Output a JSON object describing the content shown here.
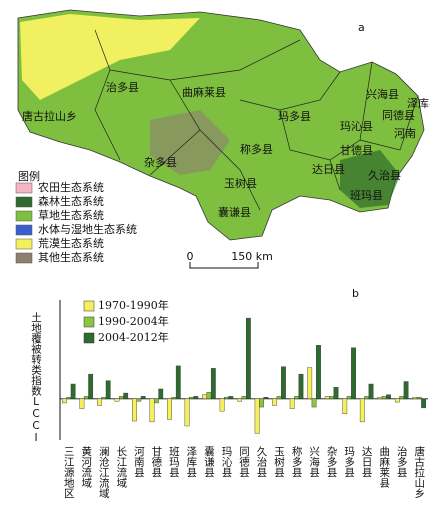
{
  "map": {
    "panel": "a",
    "legend_title": "图例",
    "legend": [
      {
        "label": "农田生态系统",
        "color": "#f4b6c2"
      },
      {
        "label": "森林生态系统",
        "color": "#2e6b2e"
      },
      {
        "label": "草地生态系统",
        "color": "#7fbf3f"
      },
      {
        "label": "水体与湿地生态系统",
        "color": "#3a5fcd"
      },
      {
        "label": "荒漠生态系统",
        "color": "#f0f060"
      },
      {
        "label": "其他生态系统",
        "color": "#8c8070"
      }
    ],
    "scale_start": "0",
    "scale_end": "150 km",
    "labels": [
      "治多县",
      "曲麻莱县",
      "唐古拉山乡",
      "兴海县",
      "同德县",
      "泽库县",
      "玛多县",
      "玛沁县",
      "河南",
      "甘德县",
      "称多县",
      "杂多县",
      "达日县",
      "久治县",
      "班玛县",
      "玉树县",
      "囊谦县"
    ]
  },
  "chart_data": {
    "type": "bar",
    "panel": "b",
    "y_label": "土地覆被转类指数LCCI",
    "categories": [
      "三江源地区",
      "黄河流域",
      "澜沧江流域",
      "长江流域",
      "河南县",
      "甘德县",
      "班玛县",
      "泽库县",
      "囊谦县",
      "玛沁县",
      "同德县",
      "久治县",
      "玉树县",
      "称多县",
      "兴海县",
      "杂多县",
      "玛多县",
      "达日县",
      "曲麻莱县",
      "治多县",
      "唐古拉山乡"
    ],
    "series": [
      {
        "name": "1970-1990年",
        "color": "#f5f05a",
        "values": [
          -0.5,
          -1.2,
          -0.8,
          -0.3,
          -2.7,
          -2.8,
          -2.5,
          -3.3,
          0.5,
          -1.5,
          -0.3,
          -4.2,
          -0.8,
          -1.2,
          3.8,
          0.3,
          -1.8,
          -2.8,
          0.2,
          -0.4,
          0.2
        ]
      },
      {
        "name": "1990-2004年",
        "color": "#8cc63f",
        "values": [
          0.2,
          0.3,
          0.2,
          0.3,
          -0.3,
          -0.5,
          0.2,
          0.2,
          0.8,
          0.2,
          0.3,
          -1.0,
          0.3,
          0.3,
          -1.0,
          0.3,
          0.3,
          0.3,
          0.3,
          0.3,
          0.2
        ]
      },
      {
        "name": "2004-2012年",
        "color": "#2e6b2e",
        "values": [
          1.8,
          3.0,
          2.2,
          0.7,
          0.3,
          1.2,
          4.0,
          0.3,
          3.7,
          0.3,
          9.8,
          0.2,
          3.9,
          3.0,
          6.5,
          1.4,
          6.2,
          1.8,
          0.5,
          2.1,
          -1.1
        ]
      }
    ],
    "ylim": [
      -5,
      12
    ]
  }
}
